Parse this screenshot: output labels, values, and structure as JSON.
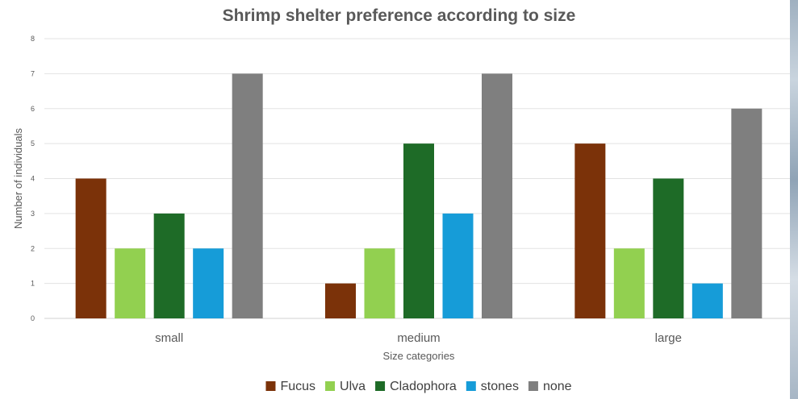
{
  "chart_data": {
    "type": "bar",
    "title": "Shrimp shelter preference according to size",
    "xlabel": "Size categories",
    "ylabel": "Number of individuals",
    "categories": [
      "small",
      "medium",
      "large"
    ],
    "ylim": [
      0,
      8
    ],
    "yticks": [
      "0",
      "1",
      "2",
      "3",
      "4",
      "5",
      "6",
      "7",
      "8"
    ],
    "grid": true,
    "legend_position": "bottom",
    "series": [
      {
        "name": "Fucus",
        "color": "#7b3209",
        "values": [
          4,
          1,
          5
        ]
      },
      {
        "name": "Ulva",
        "color": "#92d050",
        "values": [
          2,
          2,
          2
        ]
      },
      {
        "name": "Cladophora",
        "color": "#1e6b27",
        "values": [
          3,
          5,
          4
        ]
      },
      {
        "name": "stones",
        "color": "#169cd8",
        "values": [
          2,
          3,
          1
        ]
      },
      {
        "name": "none",
        "color": "#7f7f7f",
        "values": [
          7,
          7,
          6
        ]
      }
    ]
  }
}
